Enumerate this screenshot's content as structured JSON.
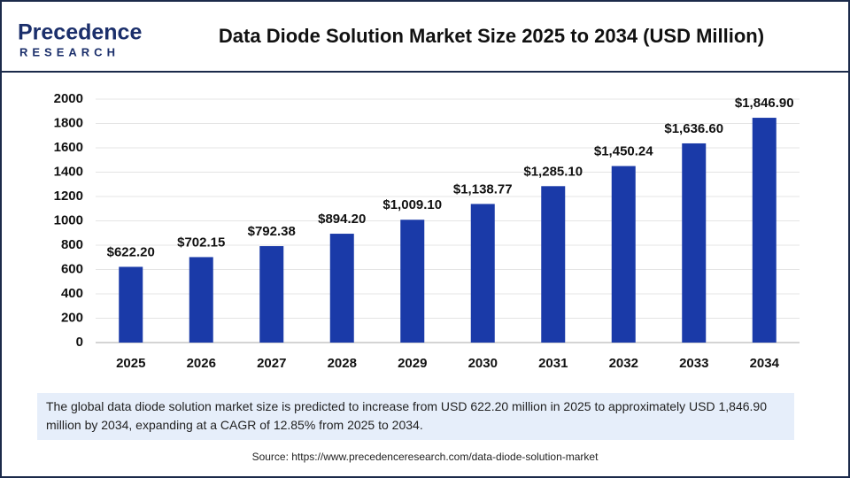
{
  "logo": {
    "name": "Precedence",
    "sub": "RESEARCH"
  },
  "chart_data": {
    "type": "bar",
    "title": "Data Diode Solution Market Size 2025 to 2034 (USD Million)",
    "categories": [
      "2025",
      "2026",
      "2027",
      "2028",
      "2029",
      "2030",
      "2031",
      "2032",
      "2033",
      "2034"
    ],
    "values": [
      622.2,
      702.15,
      792.38,
      894.2,
      1009.1,
      1138.77,
      1285.1,
      1450.24,
      1636.6,
      1846.9
    ],
    "value_labels": [
      "$622.20",
      "$702.15",
      "$792.38",
      "$894.20",
      "$1,009.10",
      "$1,138.77",
      "$1,285.10",
      "$1,450.24",
      "$1,636.60",
      "$1,846.90"
    ],
    "color": "#1a3aa8",
    "ylim": [
      0,
      2000
    ],
    "yticks": [
      0,
      200,
      400,
      600,
      800,
      1000,
      1200,
      1400,
      1600,
      1800,
      2000
    ],
    "grid": true
  },
  "note": "The global data diode solution market size is predicted to increase from USD 622.20 million in 2025 to approximately USD 1,846.90 million by 2034, expanding at a CAGR of 12.85% from 2025 to 2034.",
  "source": "Source: https://www.precedenceresearch.com/data-diode-solution-market"
}
